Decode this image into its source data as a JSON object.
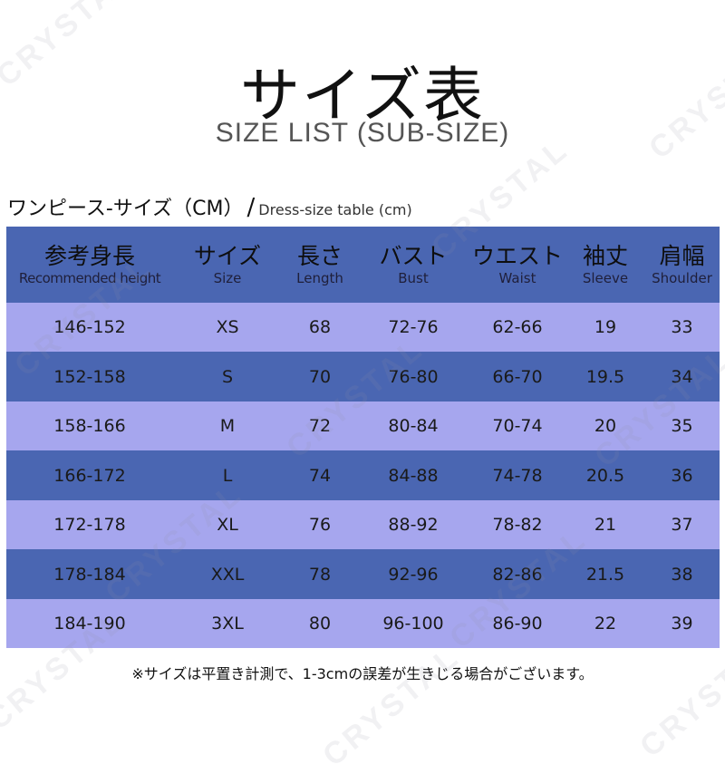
{
  "title": "サイズ表",
  "subtitle": "SIZE LIST (SUB-SIZE)",
  "caption": {
    "jp": "ワンピース-サイズ（CM）",
    "slash": "/",
    "en": "Dress-size table (cm)"
  },
  "watermark": "CRYSTAL",
  "columns": [
    {
      "jp": "参考身長",
      "en": "Recommended height"
    },
    {
      "jp": "サイズ",
      "en": "Size"
    },
    {
      "jp": "長さ",
      "en": "Length"
    },
    {
      "jp": "バスト",
      "en": "Bust"
    },
    {
      "jp": "ウエスト",
      "en": "Waist"
    },
    {
      "jp": "袖丈",
      "en": "Sleeve"
    },
    {
      "jp": "肩幅",
      "en": "Shoulder"
    }
  ],
  "rows": [
    [
      "146-152",
      "XS",
      "68",
      "72-76",
      "62-66",
      "19",
      "33"
    ],
    [
      "152-158",
      "S",
      "70",
      "76-80",
      "66-70",
      "19.5",
      "34"
    ],
    [
      "158-166",
      "M",
      "72",
      "80-84",
      "70-74",
      "20",
      "35"
    ],
    [
      "166-172",
      "L",
      "74",
      "84-88",
      "74-78",
      "20.5",
      "36"
    ],
    [
      "172-178",
      "XL",
      "76",
      "88-92",
      "78-82",
      "21",
      "37"
    ],
    [
      "178-184",
      "XXL",
      "78",
      "92-96",
      "82-86",
      "21.5",
      "38"
    ],
    [
      "184-190",
      "3XL",
      "80",
      "96-100",
      "86-90",
      "22",
      "39"
    ]
  ],
  "footnote": "※サイズは平置き計測で、1-3cmの誤差が生きじる場合がございます。",
  "colors": {
    "header_band": "#4a66b2",
    "dark_row": "#4a66b2",
    "light_row": "#a6a6ee"
  }
}
